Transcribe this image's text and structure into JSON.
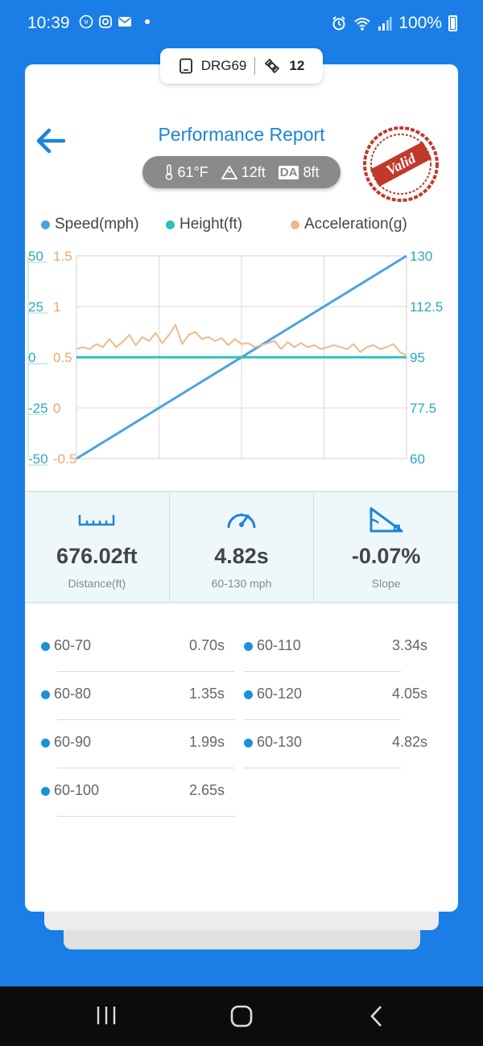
{
  "status_bar": {
    "time": "10:39",
    "battery": "100%"
  },
  "device": {
    "name": "DRG69",
    "satellites": "12"
  },
  "header": {
    "title": "Performance Report",
    "stamp_text": "Valid"
  },
  "conditions": {
    "temperature": "61°F",
    "altitude": "12ft",
    "da_label": "DA",
    "density_altitude": "8ft"
  },
  "legend": [
    {
      "label": "Speed(mph)",
      "color": "#4ba3e0"
    },
    {
      "label": "Height(ft)",
      "color": "#2ebfb8"
    },
    {
      "label": "Acceleration(g)",
      "color": "#f0b98a"
    }
  ],
  "chart_data": {
    "type": "line",
    "y_left_height_ticks": [
      "50",
      "25",
      "0",
      "-25",
      "-50"
    ],
    "y_left_accel_ticks": [
      "1.5",
      "1",
      "0.5",
      "0",
      "-0.5"
    ],
    "y_right_speed_ticks": [
      "130",
      "112.5",
      "95",
      "77.5",
      "60"
    ],
    "ylim_height": [
      -50,
      50
    ],
    "ylim_accel": [
      -0.5,
      1.5
    ],
    "ylim_speed": [
      60,
      130
    ],
    "grid": true,
    "series": [
      {
        "name": "Speed(mph)",
        "axis": "speed",
        "color": "#4ba3e0",
        "x": [
          0,
          1
        ],
        "values": [
          60,
          130
        ]
      },
      {
        "name": "Height(ft)",
        "axis": "height",
        "color": "#2ebfb8",
        "x": [
          0,
          0.1,
          0.2,
          0.4,
          0.6,
          0.8,
          1.0
        ],
        "values": [
          0,
          0,
          0,
          0,
          0,
          0,
          0
        ]
      },
      {
        "name": "Acceleration(g)",
        "axis": "accel",
        "color": "#f0b98a",
        "x": [
          0,
          0.02,
          0.04,
          0.06,
          0.08,
          0.1,
          0.12,
          0.14,
          0.16,
          0.18,
          0.2,
          0.22,
          0.24,
          0.26,
          0.28,
          0.3,
          0.32,
          0.34,
          0.36,
          0.38,
          0.4,
          0.42,
          0.44,
          0.46,
          0.48,
          0.5,
          0.52,
          0.54,
          0.56,
          0.58,
          0.6,
          0.62,
          0.64,
          0.66,
          0.68,
          0.7,
          0.72,
          0.74,
          0.76,
          0.78,
          0.8,
          0.82,
          0.84,
          0.86,
          0.88,
          0.9,
          0.92,
          0.94,
          0.96,
          0.98,
          1.0
        ],
        "values": [
          0.58,
          0.6,
          0.58,
          0.63,
          0.6,
          0.68,
          0.6,
          0.65,
          0.72,
          0.62,
          0.7,
          0.66,
          0.74,
          0.64,
          0.72,
          0.82,
          0.63,
          0.72,
          0.75,
          0.68,
          0.7,
          0.66,
          0.69,
          0.62,
          0.68,
          0.63,
          0.64,
          0.6,
          0.62,
          0.64,
          0.66,
          0.58,
          0.65,
          0.6,
          0.64,
          0.6,
          0.62,
          0.58,
          0.6,
          0.62,
          0.6,
          0.58,
          0.63,
          0.55,
          0.6,
          0.62,
          0.58,
          0.6,
          0.63,
          0.55,
          0.52
        ]
      }
    ]
  },
  "stats": [
    {
      "icon": "ruler-icon",
      "value": "676.02ft",
      "label": "Distance(ft)"
    },
    {
      "icon": "speedometer-icon",
      "value": "4.82s",
      "label": "60-130 mph"
    },
    {
      "icon": "slope-icon",
      "value": "-0.07%",
      "label": "Slope"
    }
  ],
  "splits": [
    {
      "name": "60-70",
      "time": "0.70s"
    },
    {
      "name": "60-80",
      "time": "1.35s"
    },
    {
      "name": "60-90",
      "time": "1.99s"
    },
    {
      "name": "60-100",
      "time": "2.65s"
    },
    {
      "name": "60-110",
      "time": "3.34s"
    },
    {
      "name": "60-120",
      "time": "4.05s"
    },
    {
      "name": "60-130",
      "time": "4.82s"
    }
  ]
}
